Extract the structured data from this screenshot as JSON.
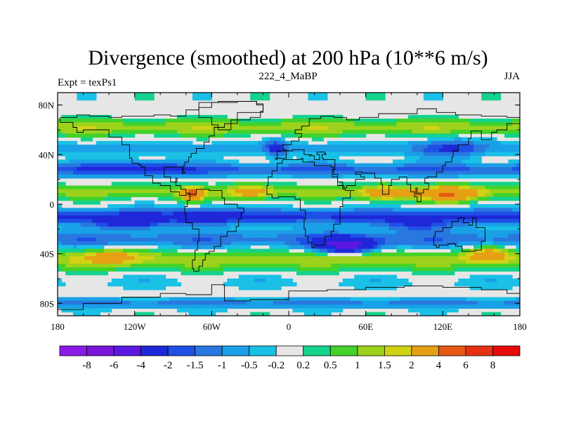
{
  "chart_data": {
    "type": "heatmap",
    "title": "Divergence (smoothed) at 200 hPa (10**6 m/s)",
    "left_label": "Expt = texPs1",
    "center_label": "222_4_MaBP",
    "right_label": "JJA",
    "x_ticks": [
      "180",
      "120W",
      "60W",
      "0",
      "60E",
      "120E",
      "180"
    ],
    "x_tick_values": [
      -180,
      -120,
      -60,
      0,
      60,
      120,
      180
    ],
    "y_ticks": [
      "80N",
      "40N",
      "0",
      "40S",
      "80S"
    ],
    "y_tick_values": [
      80,
      40,
      0,
      -40,
      -80
    ],
    "xlim": [
      -180,
      180
    ],
    "ylim": [
      -90,
      90
    ],
    "colorbar_labels": [
      "-8",
      "-6",
      "-4",
      "-2",
      "-1.5",
      "-1",
      "-0.5",
      "-0.2",
      "0.2",
      "0.5",
      "1",
      "1.5",
      "2",
      "4",
      "6",
      "8"
    ],
    "colorbar_colors": [
      "#8c1ae6",
      "#7a14d8",
      "#5a18e0",
      "#1e28d8",
      "#1e50e6",
      "#2878e0",
      "#1aa0e6",
      "#1ac0e6",
      "#e6e6e6",
      "#14d28c",
      "#44d22a",
      "#9cd21c",
      "#d2d214",
      "#e6a014",
      "#e65a14",
      "#e63214",
      "#e60a0a"
    ],
    "zones": [
      {
        "lat": 62,
        "width": 6,
        "amp": 1.3
      },
      {
        "lat": 45,
        "width": 5,
        "amp": -0.7
      },
      {
        "lat": 28,
        "width": 5,
        "amp": -1.6
      },
      {
        "lat": 10,
        "width": 5,
        "amp": 1.2
      },
      {
        "lat": -10,
        "width": 6,
        "amp": -2.1
      },
      {
        "lat": -28,
        "width": 7,
        "amp": -1.3
      },
      {
        "lat": -45,
        "width": 7,
        "amp": 1.4
      },
      {
        "lat": -63,
        "width": 5,
        "amp": -0.3
      },
      {
        "lat": -80,
        "width": 4,
        "amp": -1.1
      }
    ],
    "blobs": [
      {
        "lon": 125,
        "lat": 8,
        "amp": 3.2,
        "slon": 22,
        "slat": 6
      },
      {
        "lon": 75,
        "lat": 8,
        "amp": 2.0,
        "slon": 18,
        "slat": 6
      },
      {
        "lon": -75,
        "lat": 8,
        "amp": 3.8,
        "slon": 8,
        "slat": 5
      },
      {
        "lon": -30,
        "lat": 10,
        "amp": 1.8,
        "slon": 14,
        "slat": 6
      },
      {
        "lon": 45,
        "lat": -33,
        "amp": -4.5,
        "slon": 22,
        "slat": 6
      },
      {
        "lon": -125,
        "lat": -15,
        "amp": -2.2,
        "slon": 25,
        "slat": 5
      },
      {
        "lon": -65,
        "lat": -10,
        "amp": -1.8,
        "slon": 18,
        "slat": 6
      },
      {
        "lon": 100,
        "lat": -17,
        "amp": -1.4,
        "slon": 30,
        "slat": 5
      },
      {
        "lon": 155,
        "lat": -40,
        "amp": 2.0,
        "slon": 15,
        "slat": 6
      },
      {
        "lon": -140,
        "lat": -42,
        "amp": 1.6,
        "slon": 22,
        "slat": 6
      },
      {
        "lon": -10,
        "lat": 45,
        "amp": -1.8,
        "slon": 8,
        "slat": 7
      },
      {
        "lon": 125,
        "lat": 45,
        "amp": -1.5,
        "slon": 25,
        "slat": 8
      },
      {
        "lon": -120,
        "lat": 30,
        "amp": -1.2,
        "slon": 35,
        "slat": 6
      }
    ],
    "land_outline": [
      [
        [
          -178,
          70
        ],
        [
          -165,
          72
        ],
        [
          -155,
          71
        ],
        [
          -140,
          70
        ],
        [
          -130,
          71
        ],
        [
          -120,
          71
        ],
        [
          -105,
          72
        ],
        [
          -92,
          71
        ],
        [
          -80,
          76
        ],
        [
          -70,
          82
        ],
        [
          -55,
          83
        ],
        [
          -40,
          83
        ],
        [
          -25,
          80
        ],
        [
          -20,
          74
        ],
        [
          -40,
          65
        ],
        [
          -50,
          62
        ],
        [
          -58,
          55
        ],
        [
          -62,
          50
        ],
        [
          -66,
          45
        ],
        [
          -72,
          41
        ],
        [
          -76,
          38
        ],
        [
          -78,
          34
        ],
        [
          -81,
          31
        ],
        [
          -82,
          26
        ],
        [
          -81,
          25
        ],
        [
          -83,
          30
        ],
        [
          -90,
          30
        ],
        [
          -97,
          28
        ],
        [
          -97,
          22
        ],
        [
          -92,
          18
        ],
        [
          -87,
          21
        ],
        [
          -88,
          15
        ],
        [
          -84,
          12
        ],
        [
          -80,
          9
        ],
        [
          -77,
          8
        ],
        [
          -80,
          7
        ],
        [
          -85,
          10
        ],
        [
          -92,
          15
        ],
        [
          -100,
          17
        ],
        [
          -106,
          23
        ],
        [
          -112,
          30
        ],
        [
          -115,
          32
        ],
        [
          -117,
          33
        ],
        [
          -122,
          37
        ],
        [
          -124,
          42
        ],
        [
          -124,
          48
        ],
        [
          -130,
          54
        ],
        [
          -140,
          60
        ],
        [
          -150,
          60
        ],
        [
          -160,
          58
        ],
        [
          -165,
          62
        ],
        [
          -168,
          66
        ],
        [
          -178,
          70
        ]
      ],
      [
        [
          -77,
          8
        ],
        [
          -72,
          12
        ],
        [
          -62,
          11
        ],
        [
          -52,
          5
        ],
        [
          -50,
          0
        ],
        [
          -40,
          -3
        ],
        [
          -35,
          -7
        ],
        [
          -37,
          -12
        ],
        [
          -39,
          -18
        ],
        [
          -41,
          -22
        ],
        [
          -48,
          -26
        ],
        [
          -53,
          -34
        ],
        [
          -58,
          -38
        ],
        [
          -62,
          -40
        ],
        [
          -65,
          -45
        ],
        [
          -67,
          -50
        ],
        [
          -70,
          -54
        ],
        [
          -74,
          -52
        ],
        [
          -75,
          -45
        ],
        [
          -73,
          -37
        ],
        [
          -71,
          -30
        ],
        [
          -70,
          -20
        ],
        [
          -75,
          -15
        ],
        [
          -80,
          -8
        ],
        [
          -81,
          -2
        ],
        [
          -79,
          3
        ],
        [
          -77,
          8
        ]
      ],
      [
        [
          -10,
          36
        ],
        [
          -9,
          43
        ],
        [
          -2,
          44
        ],
        [
          -5,
          48
        ],
        [
          2,
          51
        ],
        [
          8,
          54
        ],
        [
          10,
          57
        ],
        [
          5,
          60
        ],
        [
          10,
          63
        ],
        [
          16,
          69
        ],
        [
          25,
          71
        ],
        [
          35,
          70
        ],
        [
          45,
          68
        ],
        [
          55,
          70
        ],
        [
          70,
          73
        ],
        [
          80,
          73
        ],
        [
          100,
          77
        ],
        [
          115,
          74
        ],
        [
          130,
          72
        ],
        [
          150,
          71
        ],
        [
          170,
          70
        ],
        [
          180,
          68
        ],
        [
          180,
          65
        ],
        [
          170,
          60
        ],
        [
          162,
          58
        ],
        [
          158,
          52
        ],
        [
          150,
          59
        ],
        [
          142,
          53
        ],
        [
          140,
          48
        ],
        [
          132,
          43
        ],
        [
          128,
          38
        ],
        [
          127,
          34
        ],
        [
          122,
          31
        ],
        [
          120,
          26
        ],
        [
          115,
          22
        ],
        [
          108,
          21
        ],
        [
          106,
          17
        ],
        [
          109,
          12
        ],
        [
          105,
          9
        ],
        [
          100,
          13
        ],
        [
          99,
          8
        ],
        [
          103,
          2
        ],
        [
          100,
          6
        ],
        [
          98,
          10
        ],
        [
          95,
          16
        ],
        [
          92,
          22
        ],
        [
          88,
          22
        ],
        [
          86,
          20
        ],
        [
          80,
          15
        ],
        [
          78,
          8
        ],
        [
          73,
          16
        ],
        [
          72,
          21
        ],
        [
          67,
          25
        ],
        [
          62,
          25
        ],
        [
          57,
          26
        ],
        [
          52,
          24
        ],
        [
          56,
          22
        ],
        [
          59,
          20
        ],
        [
          52,
          15
        ],
        [
          45,
          13
        ],
        [
          43,
          15
        ],
        [
          38,
          22
        ],
        [
          34,
          28
        ],
        [
          36,
          30
        ],
        [
          36,
          36
        ],
        [
          27,
          37
        ],
        [
          26,
          40
        ],
        [
          29,
          41
        ],
        [
          28,
          42
        ],
        [
          22,
          40
        ],
        [
          24,
          36
        ],
        [
          20,
          39
        ],
        [
          16,
          40
        ],
        [
          18,
          40
        ],
        [
          12,
          44
        ],
        [
          8,
          44
        ],
        [
          3,
          43
        ],
        [
          -2,
          37
        ],
        [
          -10,
          36
        ]
      ],
      [
        [
          -17,
          15
        ],
        [
          -16,
          22
        ],
        [
          -13,
          27
        ],
        [
          -9,
          33
        ],
        [
          -5,
          36
        ],
        [
          10,
          37
        ],
        [
          11,
          34
        ],
        [
          20,
          31
        ],
        [
          30,
          31
        ],
        [
          33,
          30
        ],
        [
          35,
          24
        ],
        [
          38,
          18
        ],
        [
          42,
          12
        ],
        [
          44,
          11
        ],
        [
          51,
          11
        ],
        [
          48,
          5
        ],
        [
          42,
          -2
        ],
        [
          40,
          -10
        ],
        [
          40,
          -16
        ],
        [
          35,
          -22
        ],
        [
          33,
          -26
        ],
        [
          28,
          -33
        ],
        [
          20,
          -35
        ],
        [
          18,
          -31
        ],
        [
          15,
          -26
        ],
        [
          13,
          -20
        ],
        [
          12,
          -12
        ],
        [
          13,
          -5
        ],
        [
          9,
          -1
        ],
        [
          9,
          4
        ],
        [
          5,
          6
        ],
        [
          0,
          6
        ],
        [
          -8,
          5
        ],
        [
          -13,
          8
        ],
        [
          -17,
          15
        ]
      ],
      [
        [
          114,
          -22
        ],
        [
          120,
          -19
        ],
        [
          127,
          -14
        ],
        [
          132,
          -11
        ],
        [
          137,
          -12
        ],
        [
          136,
          -15
        ],
        [
          140,
          -17
        ],
        [
          143,
          -11
        ],
        [
          146,
          -19
        ],
        [
          153,
          -25
        ],
        [
          153,
          -30
        ],
        [
          150,
          -37
        ],
        [
          145,
          -38
        ],
        [
          140,
          -38
        ],
        [
          135,
          -34
        ],
        [
          130,
          -32
        ],
        [
          124,
          -33
        ],
        [
          117,
          -35
        ],
        [
          115,
          -33
        ],
        [
          113,
          -26
        ],
        [
          114,
          -22
        ]
      ],
      [
        [
          -180,
          -85
        ],
        [
          -160,
          -80
        ],
        [
          -130,
          -75
        ],
        [
          -100,
          -72
        ],
        [
          -80,
          -73
        ],
        [
          -60,
          -65
        ],
        [
          -50,
          -78
        ],
        [
          -30,
          -77
        ],
        [
          0,
          -70
        ],
        [
          30,
          -69
        ],
        [
          60,
          -67
        ],
        [
          90,
          -66
        ],
        [
          120,
          -67
        ],
        [
          150,
          -69
        ],
        [
          170,
          -72
        ],
        [
          180,
          -78
        ],
        [
          180,
          -90
        ],
        [
          -180,
          -90
        ],
        [
          -180,
          -85
        ]
      ],
      [
        [
          -45,
          60
        ],
        [
          -55,
          64
        ],
        [
          -60,
          70
        ],
        [
          -70,
          78
        ],
        [
          -60,
          82
        ],
        [
          -40,
          83
        ],
        [
          -25,
          81
        ],
        [
          -20,
          75
        ],
        [
          -22,
          70
        ],
        [
          -30,
          68
        ],
        [
          -45,
          60
        ]
      ]
    ]
  }
}
